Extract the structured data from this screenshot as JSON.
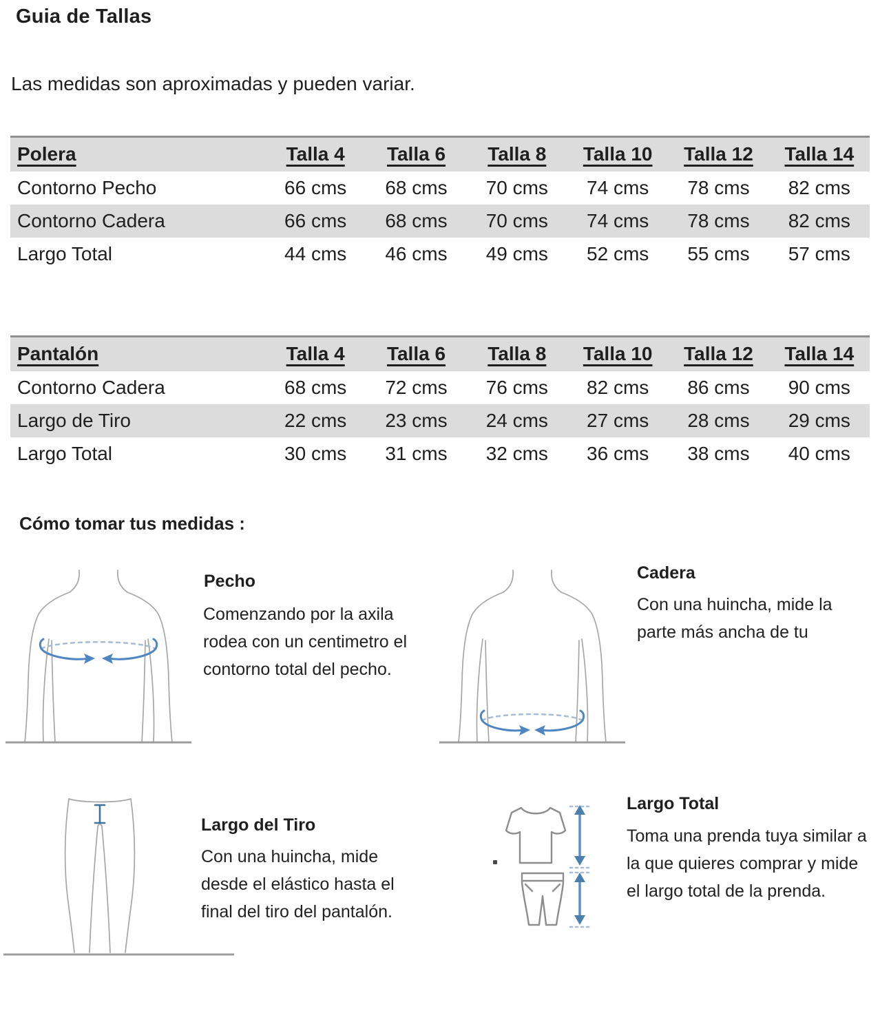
{
  "page": {
    "title": "Guia de Tallas",
    "subtitle": "Las medidas son aproximadas y pueden variar."
  },
  "tables": [
    {
      "name": "Polera",
      "columns": [
        "Talla 4",
        "Talla 6",
        "Talla 8",
        "Talla 10",
        "Talla 12",
        "Talla 14"
      ],
      "rows": [
        {
          "label": "Contorno Pecho",
          "values": [
            "66 cms",
            "68 cms",
            "70 cms",
            "74 cms",
            "78 cms",
            "82 cms"
          ]
        },
        {
          "label": "Contorno Cadera",
          "values": [
            "66 cms",
            "68 cms",
            "70 cms",
            "74 cms",
            "78 cms",
            "82 cms"
          ]
        },
        {
          "label": "Largo Total",
          "values": [
            "44 cms",
            "46 cms",
            "49 cms",
            "52 cms",
            "55 cms",
            "57 cms"
          ]
        }
      ]
    },
    {
      "name": "Pantalón",
      "columns": [
        "Talla 4",
        "Talla 6",
        "Talla 8",
        "Talla 10",
        "Talla 12",
        "Talla 14"
      ],
      "rows": [
        {
          "label": "Contorno Cadera",
          "values": [
            "68 cms",
            "72 cms",
            "76 cms",
            "82 cms",
            "86 cms",
            "90 cms"
          ]
        },
        {
          "label": "Largo de Tiro",
          "values": [
            "22 cms",
            "23 cms",
            "24 cms",
            "27 cms",
            "28 cms",
            "29 cms"
          ]
        },
        {
          "label": "Largo Total",
          "values": [
            "30 cms",
            "31 cms",
            "32 cms",
            "36 cms",
            "38 cms",
            "40 cms"
          ]
        }
      ]
    }
  ],
  "guide": {
    "heading": "Cómo tomar tus medidas :",
    "sections": [
      {
        "title": "Pecho",
        "text": "Comenzando por la axila rodea con un centimetro el contorno total del pecho.",
        "icon": "torso-chest-measure-figure"
      },
      {
        "title": "Cadera",
        "text": "Con una huincha, mide la parte más ancha de tu",
        "icon": "torso-hip-measure-figure"
      },
      {
        "title": "Largo del Tiro",
        "text": "Con una huincha, mide desde el elástico hasta el final del tiro del pantalón.",
        "icon": "legs-rise-measure-figure"
      },
      {
        "title": "Largo Total",
        "text": "Toma una prenda tuya similar a la que quieres comprar y mide el largo total de la prenda.",
        "icon": "shirt-pants-length-figure"
      }
    ]
  },
  "colors": {
    "row_stripe": "#dcdcdc",
    "header_top_border": "#8f8f8f",
    "figure_outline": "#a6a6a6",
    "tape_blue": "#4f86c2",
    "tape_dash_blue": "#a9bdd3",
    "text": "#1f1f1f"
  }
}
